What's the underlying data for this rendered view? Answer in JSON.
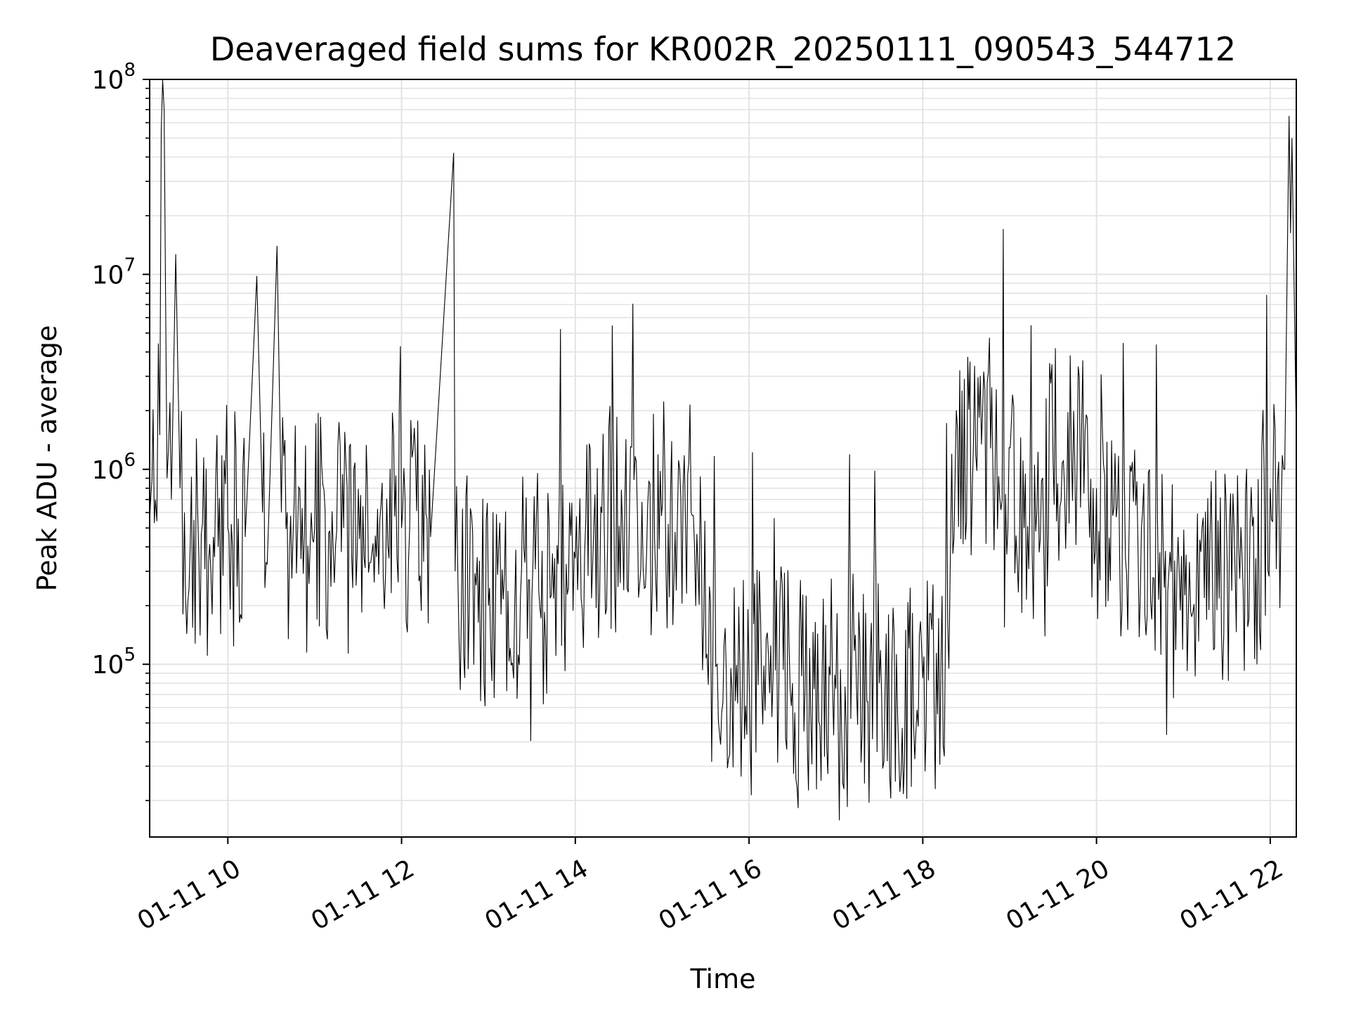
{
  "chart_data": {
    "type": "line",
    "title": "Deaveraged field sums for KR002R_20250111_090543_544712",
    "xlabel": "Time",
    "ylabel": "Peak ADU - average",
    "y_scale": "log",
    "ylim": [
      13000,
      100000000
    ],
    "xlim": [
      "2025-01-11 09:06",
      "2025-01-11 22:18"
    ],
    "grid": true,
    "line_color": "#000000",
    "x_ticks": [
      {
        "value": "2025-01-11 10:00",
        "label": "01-11 10"
      },
      {
        "value": "2025-01-11 12:00",
        "label": "01-11 12"
      },
      {
        "value": "2025-01-11 14:00",
        "label": "01-11 14"
      },
      {
        "value": "2025-01-11 16:00",
        "label": "01-11 16"
      },
      {
        "value": "2025-01-11 18:00",
        "label": "01-11 18"
      },
      {
        "value": "2025-01-11 20:00",
        "label": "01-11 20"
      },
      {
        "value": "2025-01-11 22:00",
        "label": "01-11 22"
      }
    ],
    "y_ticks": [
      {
        "value": 100000,
        "base": "10",
        "exp": "5"
      },
      {
        "value": 1000000,
        "base": "10",
        "exp": "6"
      },
      {
        "value": 10000000,
        "base": "10",
        "exp": "7"
      },
      {
        "value": 100000000,
        "base": "10",
        "exp": "8"
      }
    ],
    "series": [
      {
        "x": [
          "2025-01-11 09:06",
          "2025-01-11 09:10",
          "2025-01-11 09:13",
          "2025-01-11 09:14",
          "2025-01-11 09:16",
          "2025-01-11 09:18",
          "2025-01-11 09:21",
          "2025-01-11 09:24",
          "2025-01-11 09:27",
          "2025-01-11 09:30",
          "2025-01-11 09:34",
          "2025-01-11 09:40",
          "2025-01-11 09:50",
          "2025-01-11 10:00",
          "2025-01-11 10:12",
          "2025-01-11 10:20",
          "2025-01-11 10:24",
          "2025-01-11 10:28",
          "2025-01-11 10:34",
          "2025-01-11 10:37",
          "2025-01-11 10:45",
          "2025-01-11 11:00",
          "2025-01-11 11:20",
          "2025-01-11 11:45",
          "2025-01-11 12:00",
          "2025-01-11 12:20",
          "2025-01-11 12:36",
          "2025-01-11 12:37",
          "2025-01-11 12:39",
          "2025-01-11 13:00",
          "2025-01-11 13:30",
          "2025-01-11 14:00",
          "2025-01-11 14:20",
          "2025-01-11 14:50",
          "2025-01-11 15:20",
          "2025-01-11 15:35",
          "2025-01-11 15:38",
          "2025-01-11 16:00",
          "2025-01-11 16:30",
          "2025-01-11 17:00",
          "2025-01-11 17:30",
          "2025-01-11 18:00",
          "2025-01-11 18:18",
          "2025-01-11 18:20",
          "2025-01-11 18:50",
          "2025-01-11 19:10",
          "2025-01-11 19:30",
          "2025-01-11 19:45",
          "2025-01-11 20:00",
          "2025-01-11 20:20",
          "2025-01-11 20:50",
          "2025-01-11 21:20",
          "2025-01-11 21:50",
          "2025-01-11 22:00",
          "2025-01-11 22:10",
          "2025-01-11 22:13",
          "2025-01-11 22:15",
          "2025-01-11 22:18"
        ],
        "y": [
          550000,
          700000,
          1500000,
          55000000,
          70000000,
          900000,
          700000,
          12700000,
          800000,
          600000,
          400000,
          350000,
          450000,
          500000,
          450000,
          9800000,
          600000,
          500000,
          14000000,
          600000,
          450000,
          500000,
          500000,
          550000,
          500000,
          450000,
          42000000,
          300000,
          250000,
          200000,
          220000,
          350000,
          500000,
          650000,
          600000,
          110000,
          100000,
          90000,
          80000,
          75000,
          80000,
          85000,
          95000,
          1200000,
          1100000,
          500000,
          1100000,
          1100000,
          800000,
          350000,
          300000,
          300000,
          350000,
          800000,
          1000000,
          65000000,
          50000000,
          1500000
        ]
      }
    ]
  }
}
